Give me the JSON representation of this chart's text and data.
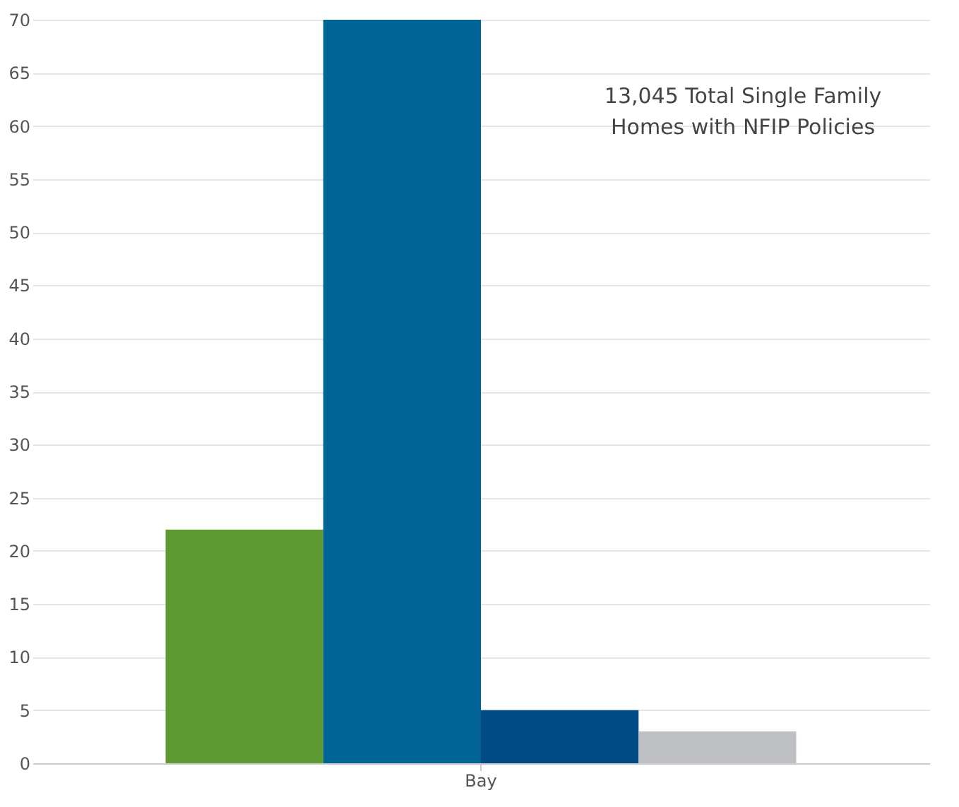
{
  "chart_data": {
    "type": "bar",
    "categories": [
      "Bay"
    ],
    "series": [
      {
        "color": "#5f9a32",
        "values": [
          22
        ]
      },
      {
        "color": "#006497",
        "values": [
          70
        ]
      },
      {
        "color": "#004b84",
        "values": [
          5
        ]
      },
      {
        "color": "#bfc0c3",
        "values": [
          3
        ]
      }
    ],
    "ylim": [
      0,
      70
    ],
    "yticks": [
      0,
      5,
      10,
      15,
      20,
      25,
      30,
      35,
      40,
      45,
      50,
      55,
      60,
      65,
      70
    ],
    "grid": "y",
    "legend": false,
    "annotations": [
      "13,045 Total Single Family Homes with NFIP Policies"
    ]
  }
}
